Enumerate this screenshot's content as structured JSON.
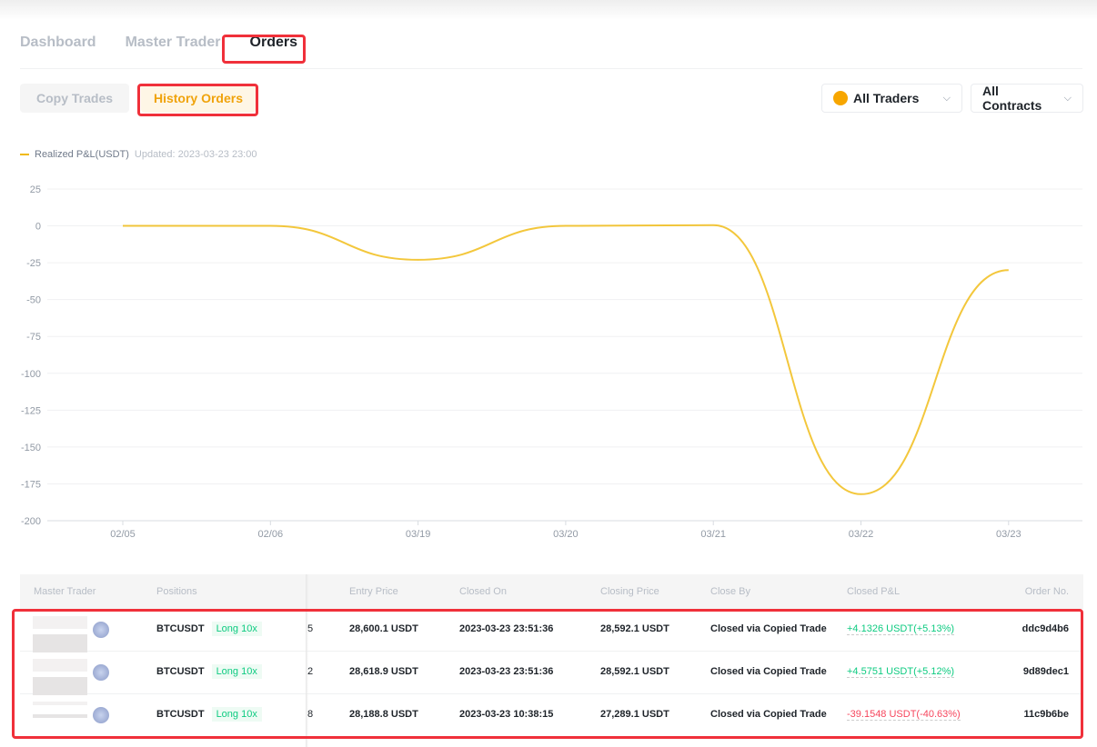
{
  "tabs": [
    "Dashboard",
    "Master Trader",
    "Orders"
  ],
  "subtabs": {
    "copy": "Copy Trades",
    "history": "History Orders"
  },
  "filters": {
    "traders": "All Traders",
    "contracts": "All Contracts"
  },
  "legend": {
    "label": "Realized P&L(USDT)",
    "updated": "Updated: 2023-03-23 23:00"
  },
  "colors": {
    "accent": "#f0b90b",
    "profit": "#0ecb81",
    "loss": "#f6465d",
    "highlight": "#f0303a"
  },
  "chart_data": {
    "type": "line",
    "series": [
      {
        "name": "Realized P&L(USDT)",
        "values": [
          0,
          0,
          -23,
          0,
          0.5,
          -182,
          -30
        ]
      }
    ],
    "categories": [
      "02/05",
      "02/06",
      "03/19",
      "03/20",
      "03/21",
      "03/22",
      "03/23"
    ],
    "yticks": [
      25,
      0,
      -25,
      -50,
      -75,
      -100,
      -125,
      -150,
      -175,
      -200
    ],
    "ylim": [
      -200,
      25
    ],
    "grid": true,
    "smooth": true
  },
  "table": {
    "headers": [
      "Master Trader",
      "Positions",
      "Entry Price",
      "Closed On",
      "Closing Price",
      "Close By",
      "Closed P&L",
      "Order No."
    ],
    "rows": [
      {
        "symbol": "BTCUSDT",
        "side": "Long 10x",
        "partial": "5",
        "entry": "28,600.1 USDT",
        "closed_on": "2023-03-23 23:51:36",
        "closing": "28,592.1 USDT",
        "close_by": "Closed via Copied Trade",
        "pnl": "+4.1326 USDT(+5.13%)",
        "pnl_sign": "pos",
        "order": "ddc9d4b6"
      },
      {
        "symbol": "BTCUSDT",
        "side": "Long 10x",
        "partial": "2",
        "entry": "28,618.9 USDT",
        "closed_on": "2023-03-23 23:51:36",
        "closing": "28,592.1 USDT",
        "close_by": "Closed via Copied Trade",
        "pnl": "+4.5751 USDT(+5.12%)",
        "pnl_sign": "pos",
        "order": "9d89dec1"
      },
      {
        "symbol": "BTCUSDT",
        "side": "Long 10x",
        "partial": "8",
        "entry": "28,188.8 USDT",
        "closed_on": "2023-03-23 10:38:15",
        "closing": "27,289.1 USDT",
        "close_by": "Closed via Copied Trade",
        "pnl": "-39.1548 USDT(-40.63%)",
        "pnl_sign": "neg",
        "order": "11c9b6be"
      }
    ]
  }
}
